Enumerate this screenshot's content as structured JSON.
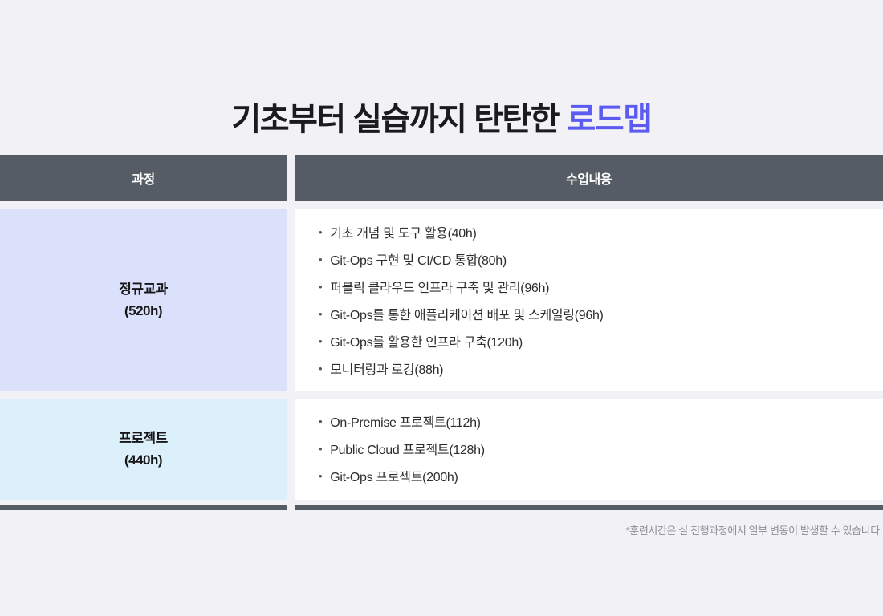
{
  "title": {
    "prefix": "기초부터 실습까지 탄탄한 ",
    "accent": "로드맵"
  },
  "table": {
    "header": {
      "course": "과정",
      "content": "수업내용"
    },
    "rows": [
      {
        "course_name": "정규교과",
        "course_hours": "(520h)",
        "items": [
          "기초 개념 및 도구 활용(40h)",
          "Git-Ops 구현 및 CI/CD 통합(80h)",
          "퍼블릭 클라우드 인프라 구축 및 관리(96h)",
          "Git-Ops를 통한 애플리케이션 배포 및 스케일링(96h)",
          "Git-Ops를 활용한 인프라 구축(120h)",
          "모니터링과 로깅(88h)"
        ]
      },
      {
        "course_name": "프로젝트",
        "course_hours": "(440h)",
        "items": [
          "On-Premise 프로젝트(112h)",
          "Public Cloud 프로젝트(128h)",
          "Git-Ops 프로젝트(200h)"
        ]
      }
    ]
  },
  "footnote": "*훈련시간은 실 진행과정에서 일부 변동이 발생할 수 있습니다.",
  "colors": {
    "page_background": "#f1f1f6",
    "title_text": "#1b1b1f",
    "title_accent": "#5b5bf2",
    "header_background": "#555c66",
    "header_text": "#ffffff",
    "row_regular_background": "#dbe1fb",
    "row_project_background": "#dcf0fb",
    "content_background": "#ffffff",
    "body_text": "#2d2d30",
    "footnote_text": "#8e8e96"
  }
}
